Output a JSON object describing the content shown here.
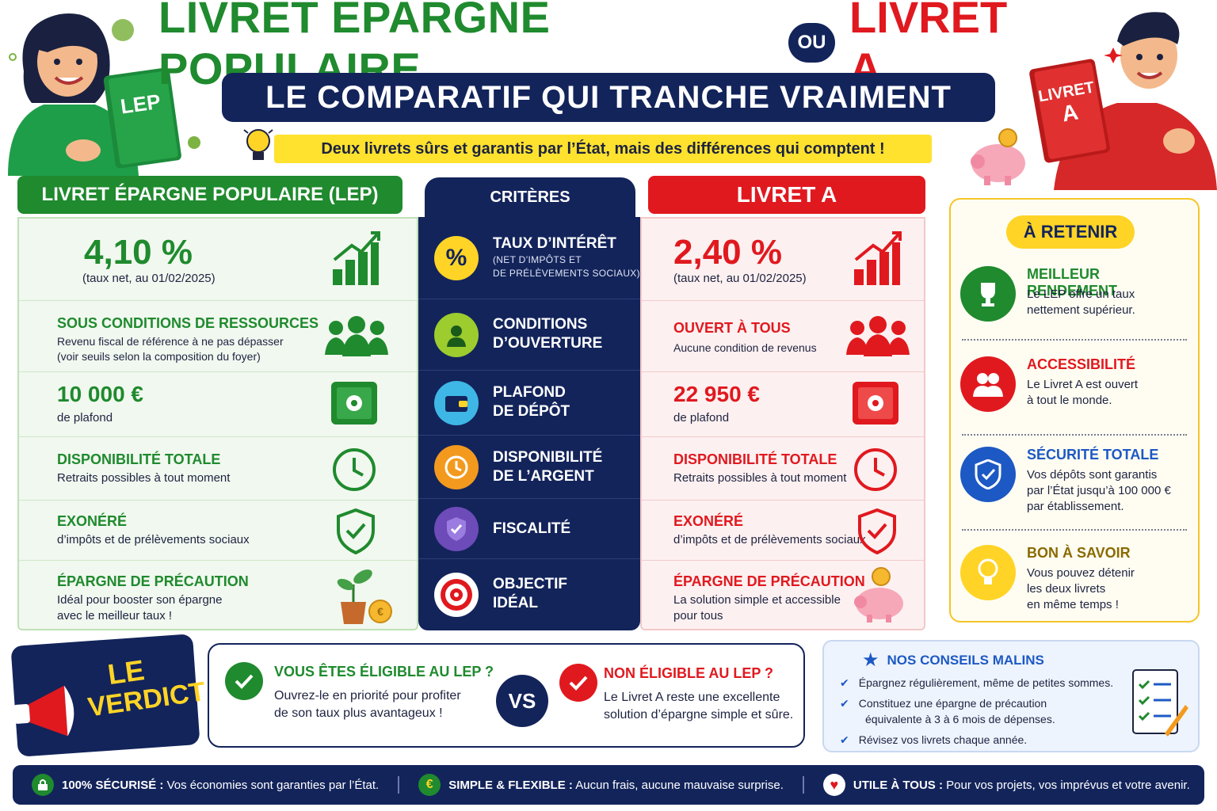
{
  "header": {
    "title_lep": "LIVRET ÉPARGNE POPULAIRE",
    "title_ou": "OU",
    "title_livret": "LIVRET A,",
    "subtitle": "LE COMPARATIF QUI TRANCHE VRAIMENT",
    "tagline": "Deux livrets sûrs et garantis par l’État, mais des différences qui comptent !",
    "book_lep": "LEP",
    "book_livret_a1": "LIVRET",
    "book_livret_a2": "A"
  },
  "columns": {
    "lep": "LIVRET ÉPARGNE POPULAIRE (LEP)",
    "criteres": "CRITÈRES",
    "livret": "LIVRET A"
  },
  "rows": [
    {
      "critere": "TAUX D’INTÉRÊT",
      "critere_sub1": "(NET D’IMPÔTS ET",
      "critere_sub2": "DE PRÉLÈVEMENTS SOCIAUX)",
      "lep_title": "4,10 %",
      "lep_text": "(taux net, au 01/02/2025)",
      "livret_title": "2,40 %",
      "livret_text": "(taux net, au 01/02/2025)"
    },
    {
      "critere1": "CONDITIONS",
      "critere2": "D’OUVERTURE",
      "lep_title": "SOUS CONDITIONS DE RESSOURCES",
      "lep_text1": "Revenu fiscal de référence à ne pas dépasser",
      "lep_text2": "(voir seuils selon la composition du foyer)",
      "livret_title": "OUVERT À TOUS",
      "livret_text": "Aucune condition de revenus"
    },
    {
      "critere1": "PLAFOND",
      "critere2": "DE DÉPÔT",
      "lep_title": "10 000 €",
      "lep_text": "de plafond",
      "livret_title": "22 950 €",
      "livret_text": "de plafond"
    },
    {
      "critere1": "DISPONIBILITÉ",
      "critere2": "DE L’ARGENT",
      "lep_title": "DISPONIBILITÉ TOTALE",
      "lep_text": "Retraits possibles à tout moment",
      "livret_title": "DISPONIBILITÉ TOTALE",
      "livret_text": "Retraits possibles à tout moment"
    },
    {
      "critere1": "FISCALITÉ",
      "lep_title": "EXONÉRÉ",
      "lep_text": "d’impôts et de prélèvements sociaux",
      "livret_title": "EXONÉRÉ",
      "livret_text": "d’impôts et de prélèvements sociaux"
    },
    {
      "critere1": "OBJECTIF",
      "critere2": "IDÉAL",
      "lep_title": "ÉPARGNE DE PRÉCAUTION",
      "lep_text1": "Idéal pour booster son épargne",
      "lep_text2": "avec le meilleur taux !",
      "livret_title": "ÉPARGNE DE PRÉCAUTION",
      "livret_text1": "La solution simple et accessible",
      "livret_text2": "pour tous"
    }
  ],
  "retenir": {
    "tag": "À RETENIR",
    "items": [
      {
        "title": "MEILLEUR RENDEMENT",
        "t1": "Le LEP offre un taux",
        "t2": "nettement supérieur.",
        "t3": ""
      },
      {
        "title": "ACCESSIBILITÉ",
        "t1": "Le Livret A est ouvert",
        "t2": "à tout le monde.",
        "t3": ""
      },
      {
        "title": "SÉCURITÉ TOTALE",
        "t1": "Vos dépôts sont garantis",
        "t2": "par l’État jusqu’à 100 000 €",
        "t3": "par établissement."
      },
      {
        "title": "BON À SAVOIR",
        "t1": "Vous pouvez détenir",
        "t2": "les deux livrets",
        "t3": "en même temps !"
      }
    ]
  },
  "verdict": {
    "line1": "LE",
    "line2": "VERDICT",
    "eligible_title": "VOUS ÊTES ÉLIGIBLE AU LEP ?",
    "eligible_t1": "Ouvrez-le en priorité pour profiter",
    "eligible_t2": "de son taux plus avantageux !",
    "vs": "VS",
    "non_title": "NON ÉLIGIBLE AU LEP ?",
    "non_t1": "Le Livret A reste une excellente",
    "non_t2": "solution d’épargne simple et sûre."
  },
  "conseils": {
    "title": "NOS CONSEILS MALINS",
    "items": [
      "Épargnez régulièrement, même de petites sommes.",
      "Constituez une épargne de précaution",
      "équivalente à 3 à 6 mois de dépenses.",
      "Révisez vos livrets chaque année."
    ]
  },
  "footer": {
    "i1_bold": "100% SÉCURISÉ :",
    "i1_text": "Vos économies sont garanties par l’État.",
    "i2_bold": "SIMPLE & FLEXIBLE :",
    "i2_text": "Aucun frais, aucune mauvaise surprise.",
    "i3_bold": "UTILE À TOUS :",
    "i3_text": "Pour vos projets, vos imprévus et votre avenir."
  },
  "colors": {
    "green": "#1f8a2e",
    "red": "#e0191f",
    "navy": "#13245b",
    "yellow": "#ffd426"
  }
}
